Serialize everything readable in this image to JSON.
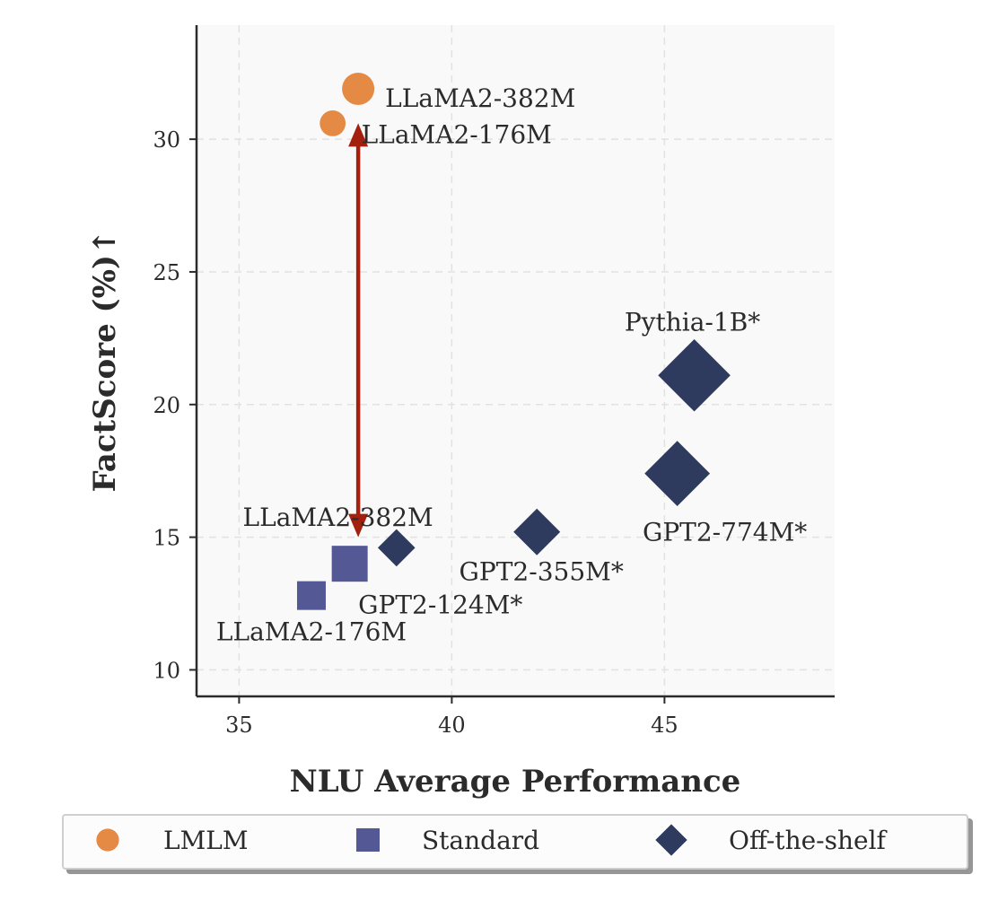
{
  "chart_data": {
    "type": "scatter",
    "title": "",
    "xlabel": "NLU Average Performance",
    "ylabel": "FactScore (%)↑",
    "xlim": [
      34,
      49
    ],
    "ylim": [
      9,
      34.3
    ],
    "xticks": [
      35,
      40,
      45
    ],
    "yticks": [
      10,
      15,
      20,
      25,
      30
    ],
    "grid": true,
    "colors": {
      "lmlm": "#e58a45",
      "standard": "#545996",
      "offshelf": "#2e3b5e",
      "arrow": "#a3200e"
    },
    "legend": {
      "placement": "bottom",
      "entries": [
        {
          "name": "LMLM",
          "marker": "circle"
        },
        {
          "name": "Standard",
          "marker": "square"
        },
        {
          "name": "Off-the-shelf",
          "marker": "diamond"
        }
      ]
    },
    "series": [
      {
        "name": "LMLM",
        "marker": "circle",
        "points": [
          {
            "x": 37.8,
            "y": 31.9,
            "size": 1.0,
            "label": "LLaMA2-382M"
          },
          {
            "x": 37.2,
            "y": 30.6,
            "size": 0.8,
            "label": "LLaMA2-176M"
          }
        ]
      },
      {
        "name": "Standard",
        "marker": "square",
        "points": [
          {
            "x": 37.6,
            "y": 14.0,
            "size": 1.0,
            "label": "LLaMA2-382M"
          },
          {
            "x": 36.7,
            "y": 12.8,
            "size": 0.8,
            "label": "LLaMA2-176M"
          }
        ]
      },
      {
        "name": "Off-the-shelf",
        "marker": "diamond",
        "points": [
          {
            "x": 38.7,
            "y": 14.6,
            "size": 0.8,
            "label": "GPT2-124M*"
          },
          {
            "x": 42.0,
            "y": 15.2,
            "size": 1.0,
            "label": "GPT2-355M*"
          },
          {
            "x": 45.3,
            "y": 17.4,
            "size": 1.4,
            "label": "GPT2-774M*"
          },
          {
            "x": 45.7,
            "y": 21.1,
            "size": 1.55,
            "label": "Pythia-1B*"
          }
        ]
      }
    ],
    "annotations": [
      {
        "type": "double-arrow",
        "x": 37.8,
        "y_from": 30.6,
        "y_to": 15.0
      }
    ]
  }
}
